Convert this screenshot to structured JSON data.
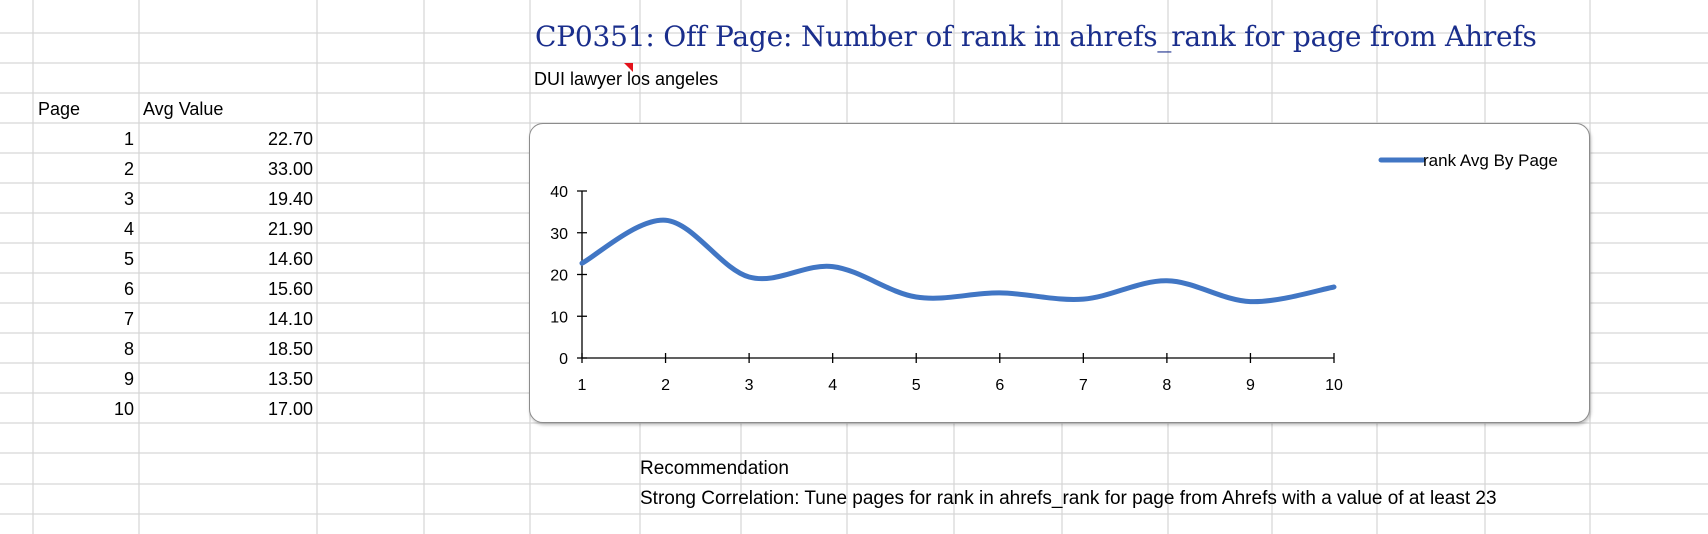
{
  "sheet": {
    "title": "CP0351: Off Page: Number of rank in ahrefs_rank for page from Ahrefs",
    "keyword": "DUI lawyer los angeles",
    "table": {
      "headers": [
        "Page",
        "Avg Value"
      ],
      "rows": [
        [
          "1",
          "22.70"
        ],
        [
          "2",
          "33.00"
        ],
        [
          "3",
          "19.40"
        ],
        [
          "4",
          "21.90"
        ],
        [
          "5",
          "14.60"
        ],
        [
          "6",
          "15.60"
        ],
        [
          "7",
          "14.10"
        ],
        [
          "8",
          "18.50"
        ],
        [
          "9",
          "13.50"
        ],
        [
          "10",
          "17.00"
        ]
      ]
    },
    "recommendation": {
      "heading": "Recommendation",
      "text": "Strong Correlation: Tune pages for rank in ahrefs_rank for page from Ahrefs with a value of at least 23"
    }
  },
  "colors": {
    "series": "#4176c4",
    "title": "#1a2e8c",
    "gridline": "#d6d6d6",
    "comment_marker": "#e3121b"
  },
  "chart_data": {
    "type": "line",
    "smooth": true,
    "x": [
      1,
      2,
      3,
      4,
      5,
      6,
      7,
      8,
      9,
      10
    ],
    "series": [
      {
        "name": "rank Avg By Page",
        "values": [
          22.7,
          33.0,
          19.4,
          21.9,
          14.6,
          15.6,
          14.1,
          18.5,
          13.5,
          17.0
        ]
      }
    ],
    "xticks": [
      "1",
      "2",
      "3",
      "4",
      "5",
      "6",
      "7",
      "8",
      "9",
      "10"
    ],
    "yticks": [
      "0",
      "10",
      "20",
      "30",
      "40"
    ],
    "ylim": [
      0,
      40
    ],
    "grid": false,
    "legend": "top-right"
  }
}
